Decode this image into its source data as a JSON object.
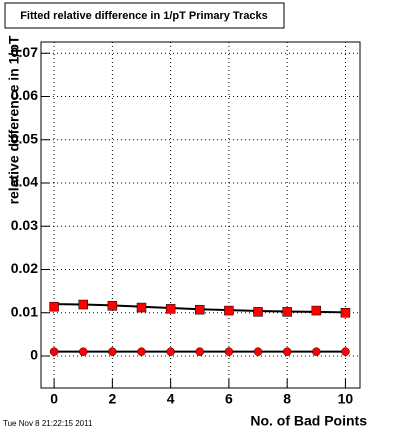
{
  "chart_data": {
    "type": "scatter",
    "title": "Fitted relative difference in 1/pT Primary Tracks",
    "x_label": "No. of Bad Points",
    "y_label": "relative difference in 1/pT",
    "timestamp": "Tue Nov  8 21:22:15 2011",
    "x": [
      0,
      1,
      2,
      3,
      4,
      5,
      6,
      7,
      8,
      9,
      10
    ],
    "series": [
      {
        "color": "#ff0000",
        "marker": "square",
        "values": [
          0.0114,
          0.0119,
          0.0116,
          0.0112,
          0.0109,
          0.0107,
          0.0105,
          0.0102,
          0.0102,
          0.0105,
          0.01
        ]
      },
      {
        "color": "#000000",
        "marker": "line",
        "values": [
          0.012,
          0.0119,
          0.0117,
          0.0114,
          0.0111,
          0.0108,
          0.0106,
          0.0104,
          0.0103,
          0.0102,
          0.0101
        ]
      },
      {
        "color": "#ff0000",
        "marker": "circle",
        "values": [
          0.001,
          0.001,
          0.001,
          0.001,
          0.001,
          0.001,
          0.001,
          0.001,
          0.001,
          0.001,
          0.001
        ]
      },
      {
        "color": "#000000",
        "marker": "line",
        "values": [
          0.001,
          0.001,
          0.001,
          0.001,
          0.001,
          0.001,
          0.001,
          0.001,
          0.001,
          0.001,
          0.001
        ]
      }
    ],
    "xlim": [
      -0.45,
      10.5
    ],
    "xticks": [
      0,
      2,
      4,
      6,
      8,
      10
    ],
    "ylim": [
      -0.0074,
      0.0726
    ],
    "yticks": [
      0,
      0.01,
      0.02,
      0.03,
      0.04,
      0.05,
      0.06,
      0.07
    ],
    "grid": true
  }
}
